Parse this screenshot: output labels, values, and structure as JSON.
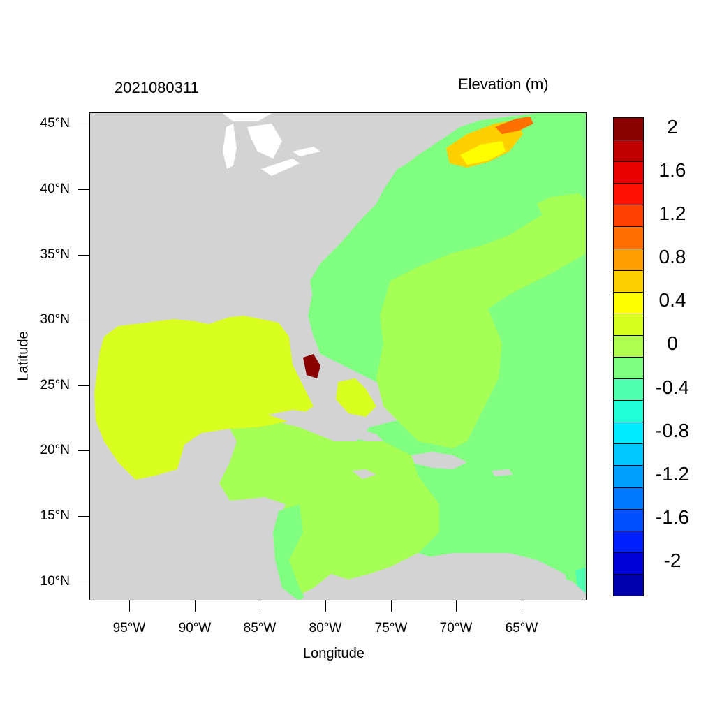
{
  "title_left": "2021080311",
  "title_right": "Elevation (m)",
  "axes": {
    "xlabel": "Longitude",
    "ylabel": "Latitude",
    "lon_range": [
      -98,
      -60
    ],
    "lat_range": [
      8.5,
      46
    ],
    "xticks": [
      {
        "value": -95,
        "label": "95°W"
      },
      {
        "value": -90,
        "label": "90°W"
      },
      {
        "value": -85,
        "label": "85°W"
      },
      {
        "value": -80,
        "label": "80°W"
      },
      {
        "value": -75,
        "label": "75°W"
      },
      {
        "value": -70,
        "label": "70°W"
      },
      {
        "value": -65,
        "label": "65°W"
      }
    ],
    "yticks": [
      {
        "value": 45,
        "label": "45°N"
      },
      {
        "value": 40,
        "label": "40°N"
      },
      {
        "value": 35,
        "label": "35°N"
      },
      {
        "value": 30,
        "label": "30°N"
      },
      {
        "value": 25,
        "label": "25°N"
      },
      {
        "value": 20,
        "label": "20°N"
      },
      {
        "value": 15,
        "label": "15°N"
      },
      {
        "value": 10,
        "label": "10°N"
      }
    ]
  },
  "colorbar": {
    "colors": [
      "#0000b0",
      "#0000d8",
      "#0020ff",
      "#0050ff",
      "#0078ff",
      "#00a0ff",
      "#00c8ff",
      "#00ecff",
      "#20ffd8",
      "#50ffb0",
      "#80ff80",
      "#b0ff50",
      "#d8ff20",
      "#ffff00",
      "#ffd000",
      "#ffa000",
      "#ff7000",
      "#ff4000",
      "#ff1000",
      "#e80000",
      "#c00000",
      "#880000"
    ],
    "labels": [
      "-2",
      "-1.6",
      "-1.2",
      "-0.8",
      "-0.4",
      "0",
      "0.4",
      "0.8",
      "1.2",
      "1.6",
      "2"
    ]
  },
  "land_color": "#d3d3d3"
}
